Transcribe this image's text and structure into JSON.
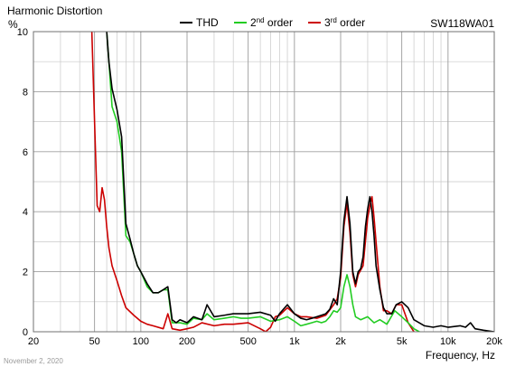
{
  "chart_data": {
    "type": "line",
    "title": "Harmonic Distortion",
    "ylabel": "%",
    "xlabel": "Frequency, Hz",
    "model": "SW118WA01",
    "date": "November 2, 2020",
    "x_scale": "log",
    "xlim": [
      20,
      20000
    ],
    "ylim": [
      0,
      10
    ],
    "grid": true,
    "legend_position": "top",
    "x_ticks": [
      {
        "value": 20,
        "label": "20"
      },
      {
        "value": 50,
        "label": "50"
      },
      {
        "value": 100,
        "label": "100"
      },
      {
        "value": 200,
        "label": "200"
      },
      {
        "value": 500,
        "label": "500"
      },
      {
        "value": 1000,
        "label": "1k"
      },
      {
        "value": 2000,
        "label": "2k"
      },
      {
        "value": 5000,
        "label": "5k"
      },
      {
        "value": 10000,
        "label": "10k"
      },
      {
        "value": 20000,
        "label": "20k"
      }
    ],
    "y_ticks": [
      0,
      2,
      4,
      6,
      8,
      10
    ],
    "series": [
      {
        "name": "THD",
        "legend_sup": "",
        "legend_suffix": "",
        "color": "#000000",
        "x": [
          60,
          62,
          65,
          70,
          75,
          80,
          85,
          90,
          95,
          100,
          110,
          120,
          130,
          140,
          150,
          160,
          170,
          180,
          200,
          220,
          250,
          270,
          300,
          350,
          400,
          450,
          500,
          600,
          700,
          750,
          800,
          900,
          1000,
          1100,
          1200,
          1300,
          1400,
          1500,
          1600,
          1700,
          1800,
          1900,
          2000,
          2100,
          2200,
          2300,
          2400,
          2500,
          2600,
          2700,
          2800,
          2900,
          3000,
          3100,
          3200,
          3300,
          3400,
          3600,
          3800,
          4000,
          4300,
          4600,
          5000,
          5500,
          6000,
          7000,
          8000,
          9000,
          10000,
          12000,
          13000,
          14000,
          15000,
          17000,
          20000
        ],
        "y": [
          10,
          9.0,
          8.1,
          7.4,
          6.5,
          3.6,
          3.1,
          2.6,
          2.2,
          2.0,
          1.6,
          1.3,
          1.3,
          1.4,
          1.5,
          0.4,
          0.3,
          0.4,
          0.3,
          0.5,
          0.4,
          0.9,
          0.5,
          0.55,
          0.6,
          0.6,
          0.6,
          0.65,
          0.55,
          0.35,
          0.6,
          0.9,
          0.6,
          0.45,
          0.4,
          0.45,
          0.5,
          0.55,
          0.6,
          0.75,
          1.1,
          0.9,
          2.0,
          3.7,
          4.5,
          3.6,
          2.0,
          1.6,
          2.0,
          2.1,
          2.5,
          3.5,
          4.1,
          4.5,
          4.0,
          3.2,
          2.2,
          1.4,
          0.8,
          0.6,
          0.6,
          0.9,
          1.0,
          0.8,
          0.4,
          0.2,
          0.15,
          0.2,
          0.15,
          0.2,
          0.15,
          0.3,
          0.1,
          0.05,
          0.0
        ]
      },
      {
        "name": "2",
        "legend_sup": "nd",
        "legend_suffix": " order",
        "color": "#22cc22",
        "x": [
          60,
          62,
          65,
          70,
          75,
          80,
          85,
          90,
          95,
          100,
          110,
          120,
          130,
          140,
          150,
          160,
          170,
          180,
          200,
          220,
          250,
          270,
          300,
          350,
          400,
          450,
          500,
          600,
          700,
          800,
          900,
          1000,
          1100,
          1200,
          1300,
          1400,
          1500,
          1600,
          1700,
          1800,
          1900,
          2000,
          2100,
          2200,
          2300,
          2400,
          2500,
          2700,
          3000,
          3300,
          3600,
          4000,
          4500,
          5000,
          5500,
          6000,
          6500
        ],
        "y": [
          10,
          9.0,
          7.5,
          7.0,
          6.0,
          3.2,
          3.0,
          2.6,
          2.2,
          2.0,
          1.5,
          1.3,
          1.3,
          1.4,
          1.4,
          0.3,
          0.3,
          0.3,
          0.25,
          0.45,
          0.4,
          0.6,
          0.4,
          0.45,
          0.5,
          0.45,
          0.45,
          0.5,
          0.35,
          0.4,
          0.5,
          0.35,
          0.2,
          0.25,
          0.3,
          0.35,
          0.3,
          0.35,
          0.5,
          0.7,
          0.65,
          0.8,
          1.5,
          1.9,
          1.5,
          0.9,
          0.5,
          0.4,
          0.5,
          0.3,
          0.4,
          0.25,
          0.7,
          0.5,
          0.3,
          0.1,
          0.0
        ]
      },
      {
        "name": "3",
        "legend_sup": "rd",
        "legend_suffix": " order",
        "color": "#cc0000",
        "x": [
          48,
          50,
          52,
          54,
          56,
          58,
          60,
          62,
          65,
          70,
          75,
          80,
          90,
          100,
          110,
          120,
          140,
          150,
          160,
          180,
          200,
          220,
          250,
          300,
          350,
          400,
          500,
          600,
          650,
          700,
          750,
          800,
          900,
          1000,
          1100,
          1200,
          1400,
          1600,
          1800,
          1900,
          2000,
          2100,
          2200,
          2300,
          2400,
          2500,
          2600,
          2800,
          3000,
          3100,
          3200,
          3300,
          3400,
          3600,
          3800,
          4000,
          4300,
          4600,
          5000,
          5500,
          6000
        ],
        "y": [
          10,
          7.0,
          4.2,
          4.0,
          4.8,
          4.4,
          3.5,
          2.8,
          2.2,
          1.7,
          1.2,
          0.8,
          0.55,
          0.35,
          0.25,
          0.2,
          0.1,
          0.6,
          0.1,
          0.05,
          0.1,
          0.15,
          0.3,
          0.2,
          0.25,
          0.25,
          0.3,
          0.1,
          0.0,
          0.15,
          0.5,
          0.55,
          0.8,
          0.6,
          0.5,
          0.5,
          0.45,
          0.55,
          0.9,
          1.1,
          1.8,
          3.5,
          4.3,
          3.3,
          1.9,
          1.5,
          1.9,
          2.2,
          3.8,
          4.2,
          4.5,
          3.8,
          3.0,
          1.5,
          0.7,
          0.7,
          0.6,
          0.9,
          0.9,
          0.3,
          0.0
        ]
      }
    ]
  }
}
